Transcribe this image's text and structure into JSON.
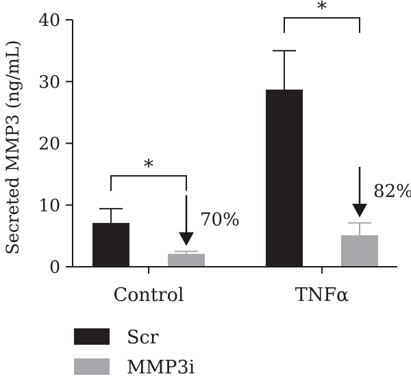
{
  "chart_data": {
    "type": "bar",
    "title": "",
    "xlabel": "",
    "ylabel": "Secreted MMP3 (ng/mL)",
    "ylim": [
      0,
      40
    ],
    "yticks": [
      0,
      10,
      20,
      30,
      40
    ],
    "categories": [
      "Control",
      "TNFα"
    ],
    "series": [
      {
        "name": "Scr",
        "color": "#231f20",
        "values": [
          7.1,
          28.7
        ],
        "errors": [
          2.3,
          6.3
        ]
      },
      {
        "name": "MMP3i",
        "color": "#a6a8ab",
        "values": [
          2.1,
          5.1
        ],
        "errors": [
          0.4,
          2.0
        ]
      }
    ],
    "annotations": [
      {
        "category_index": 0,
        "reduction_label": "70%",
        "significance": "*"
      },
      {
        "category_index": 1,
        "reduction_label": "82%",
        "significance": "*"
      }
    ],
    "legend_position": "bottom-left"
  }
}
